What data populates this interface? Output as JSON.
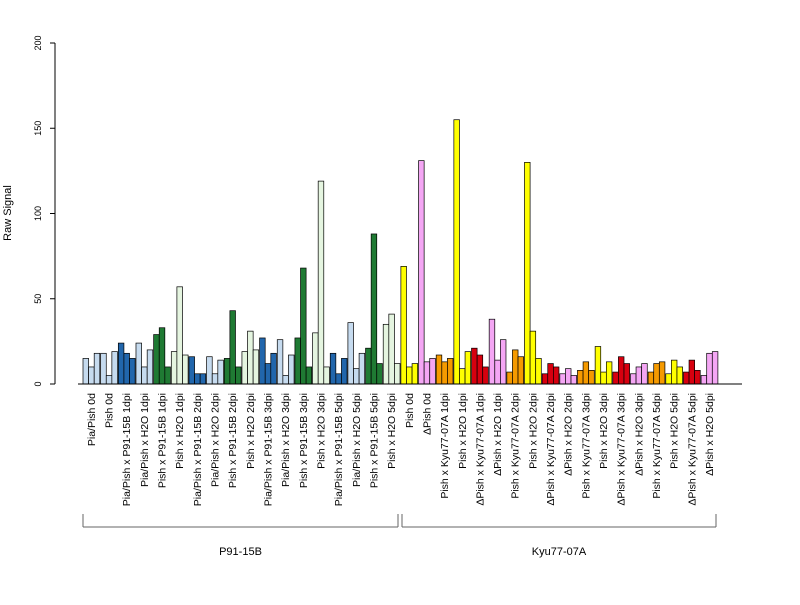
{
  "chart_data": {
    "type": "bar",
    "ylabel": "Raw Signal",
    "xlabel": "",
    "ylim": [
      0,
      200
    ],
    "yticks": [
      0,
      50,
      100,
      150,
      200
    ],
    "grid": false,
    "legend": "none",
    "bars_per_group": 3,
    "categories": [
      "Pia/Pish 0d",
      "Pish 0d",
      "Pia/Pish x P91-15B 1dpi",
      "Pia/Pish x H2O 1dpi",
      "Pish x P91-15B 1dpi",
      "Pish x H2O 1dpi",
      "Pia/Pish x P91-15B 2dpi",
      "Pia/Pish x H2O 2dpi",
      "Pish x P91-15B 2dpi",
      "Pish x H2O 2dpi",
      "Pia/Pish x P91-15B 3dpi",
      "Pia/Pish x H2O 3dpi",
      "Pish x P91-15B 3dpi",
      "Pish x H2O 3dpi",
      "Pia/Pish x P91-15B 5dpi",
      "Pia/Pish x H2O 5dpi",
      "Pish x P91-15B 5dpi",
      "Pish x H2O 5dpi",
      "Pish 0d",
      "ΔPish 0d",
      "Pish x Kyu77-07A 1dpi",
      "Pish x H2O 1dpi",
      "ΔPish x Kyu77-07A 1dpi",
      "ΔPish x H2O 1dpi",
      "Pish x Kyu77-07A 2dpi",
      "Pish x H2O 2dpi",
      "ΔPish x Kyu77-07A 2dpi",
      "ΔPish x H2O 2dpi",
      "Pish x Kyu77-07A 3dpi",
      "Pish x H2O 3dpi",
      "ΔPish x Kyu77-07A 3dpi",
      "ΔPish x H2O 3dpi",
      "Pish x Kyu77-07A 5dpi",
      "Pish x H2O 5dpi",
      "ΔPish x Kyu77-07A 5dpi",
      "ΔPish x H2O 5dpi"
    ],
    "group_colors": [
      "#c6dbef",
      "#c6dbef",
      "#2166ac",
      "#c6dbef",
      "#1f7a33",
      "#e5f5e0",
      "#2166ac",
      "#c6dbef",
      "#1f7a33",
      "#e5f5e0",
      "#2166ac",
      "#c6dbef",
      "#1f7a33",
      "#e5f5e0",
      "#2166ac",
      "#c6dbef",
      "#1f7a33",
      "#e5f5e0",
      "#ffff00",
      "#f4a6f4",
      "#f59a00",
      "#ffff00",
      "#d7000f",
      "#f4a6f4",
      "#f59a00",
      "#ffff00",
      "#d7000f",
      "#f4a6f4",
      "#f59a00",
      "#ffff00",
      "#d7000f",
      "#f4a6f4",
      "#f59a00",
      "#ffff00",
      "#d7000f",
      "#f4a6f4"
    ],
    "series": [
      {
        "values": [
          15,
          18,
          24,
          24,
          29,
          19,
          16,
          16,
          15,
          19,
          27,
          26,
          27,
          30,
          18,
          36,
          21,
          35,
          69,
          131,
          17,
          155,
          21,
          38,
          7,
          130,
          6,
          6,
          8,
          22,
          7,
          6,
          7,
          6,
          7,
          5
        ]
      },
      {
        "values": [
          10,
          5,
          18,
          10,
          33,
          57,
          6,
          6,
          43,
          31,
          12,
          5,
          68,
          119,
          6,
          9,
          88,
          41,
          10,
          13,
          13,
          9,
          17,
          14,
          20,
          31,
          12,
          9,
          13,
          7,
          16,
          10,
          12,
          14,
          14,
          18
        ]
      },
      {
        "values": [
          18,
          19,
          15,
          20,
          10,
          17,
          6,
          14,
          10,
          20,
          18,
          17,
          10,
          10,
          15,
          18,
          12,
          12,
          12,
          15,
          15,
          19,
          10,
          26,
          16,
          15,
          10,
          5,
          8,
          13,
          12,
          12,
          13,
          10,
          8,
          19
        ]
      }
    ],
    "groups": [
      {
        "name": "P91-15B",
        "first": 0,
        "last": 17
      },
      {
        "name": "Kyu77-07A",
        "first": 18,
        "last": 35
      }
    ]
  }
}
